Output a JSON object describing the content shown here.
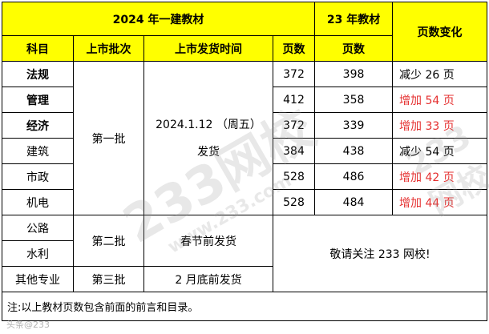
{
  "header": {
    "group_2024": "2024 年一建教材",
    "group_23": "23 年教材",
    "change": "页数变化",
    "subject": "科目",
    "batch": "上市批次",
    "release_time": "上市发货时间",
    "pages_2024": "页数",
    "pages_23": "页数"
  },
  "rows": [
    {
      "subject": "法规",
      "p24": "372",
      "p23": "398",
      "change": "减少 26 页"
    },
    {
      "subject": "管理",
      "p24": "412",
      "p23": "358",
      "change": "增加 54 页"
    },
    {
      "subject": "经济",
      "p24": "372",
      "p23": "339",
      "change": "增加 33 页"
    },
    {
      "subject": "建筑",
      "p24": "384",
      "p23": "438",
      "change": "减少 54 页"
    },
    {
      "subject": "市政",
      "p24": "528",
      "p23": "486",
      "change": "增加 42 页"
    },
    {
      "subject": "机电",
      "p24": "528",
      "p23": "484",
      "change": "增加 44 页"
    }
  ],
  "batch1": {
    "label": "第一批",
    "date": "2024.1.12 （周五）",
    "ship": "发货"
  },
  "batch2": {
    "subject1": "公路",
    "subject2": "水利",
    "label": "第二批",
    "time": "春节前发货"
  },
  "batch3": {
    "subject": "其他专业",
    "label": "第三批",
    "time": "2 月底前发货"
  },
  "follow_note": "敬请关注 233 网校!",
  "footnote": "注:以上教材页数包含前面的前言和目录。",
  "watermark": {
    "text": "233网校",
    "url": "www.233.com",
    "footer": "头条@233"
  },
  "colors": {
    "header_bg": "#ffff00",
    "increase": "#e53030"
  }
}
